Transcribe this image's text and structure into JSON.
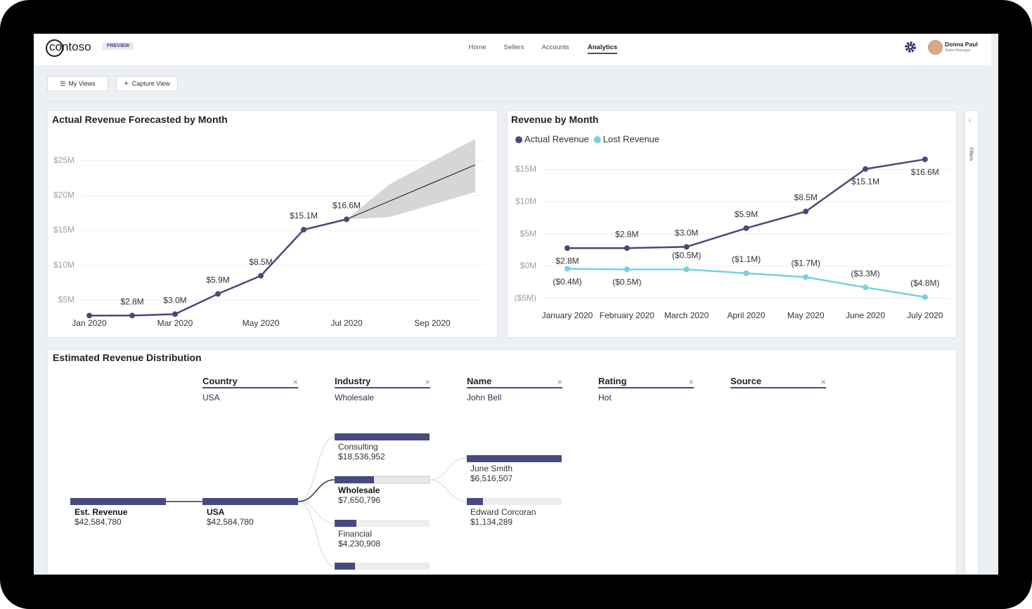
{
  "header": {
    "logo": "contoso",
    "badge": "PREVIEW",
    "nav": [
      "Home",
      "Sellers",
      "Accounts",
      "Analytics"
    ],
    "active_nav": 3,
    "user": {
      "name": "Donna Paul",
      "role": "Sales Manager"
    }
  },
  "toolbar": {
    "buttons": [
      "My Views",
      "Capture View"
    ]
  },
  "filters_pane": {
    "label": "Filters"
  },
  "chart_data": [
    {
      "type": "line",
      "title": "Actual Revenue Forecasted by Month",
      "categories": [
        "Jan 2020",
        null,
        "Mar 2020",
        null,
        "May 2020",
        null,
        "Jul 2020",
        null,
        "Sep 2020",
        null
      ],
      "series": [
        {
          "color": "#474a7d",
          "values": [
            2.8,
            2.8,
            3.0,
            5.9,
            8.5,
            15.1,
            16.6,
            null,
            null,
            null
          ],
          "value_labels": [
            null,
            "$2.8M",
            "$3.0M",
            "$5.9M",
            "$8.5M",
            "$15.1M",
            "$16.6M",
            null,
            null,
            null
          ]
        }
      ],
      "forecast": {
        "color": "#111111",
        "band_color": "#d6d6d6",
        "values": [
          null,
          null,
          null,
          null,
          null,
          null,
          16.6,
          19.2,
          21.8,
          24.4
        ],
        "upper": [
          null,
          null,
          null,
          null,
          null,
          null,
          16.6,
          21.6,
          24.9,
          28.1
        ],
        "lower": [
          null,
          null,
          null,
          null,
          null,
          null,
          16.6,
          16.9,
          18.7,
          20.5
        ]
      },
      "ylim": [
        0,
        29
      ],
      "yticks": [
        {
          "value": 5,
          "label": "$5M"
        },
        {
          "value": 10,
          "label": "$10M"
        },
        {
          "value": 15,
          "label": "$15M"
        },
        {
          "value": 20,
          "label": "$20M"
        },
        {
          "value": 25,
          "label": "$25M"
        }
      ],
      "grid": true
    },
    {
      "type": "line",
      "title": "Revenue by Month",
      "categories": [
        "January 2020",
        "February 2020",
        "March 2020",
        "April 2020",
        "May 2020",
        "June 2020",
        "July 2020"
      ],
      "series": [
        {
          "name": "Actual Revenue",
          "color": "#474a7d",
          "values": [
            2.8,
            2.8,
            3.0,
            5.9,
            8.5,
            15.1,
            16.6
          ],
          "value_labels": [
            "$2.8M",
            "$2.8M",
            "$3.0M",
            "$5.9M",
            "$8.5M",
            "$15.1M",
            "$16.6M"
          ]
        },
        {
          "name": "Lost Revenue",
          "color": "#76d0df",
          "values": [
            -0.4,
            -0.5,
            -0.5,
            -1.1,
            -1.7,
            -3.3,
            -4.8
          ],
          "value_labels": [
            "($0.4M)",
            "($0.5M)",
            "($0.5M)",
            "($1.1M)",
            "($1.7M)",
            "($3.3M)",
            "($4.8M)"
          ]
        }
      ],
      "legend": "top-left",
      "ylim": [
        -6.5,
        18
      ],
      "yticks": [
        {
          "value": -5,
          "label": "($5M)"
        },
        {
          "value": 0,
          "label": "$0M"
        },
        {
          "value": 5,
          "label": "$5M"
        },
        {
          "value": 10,
          "label": "$10M"
        },
        {
          "value": 15,
          "label": "$15M"
        }
      ],
      "grid": true
    }
  ],
  "decomposition": {
    "title": "Estimated Revenue Distribution",
    "columns": [
      {
        "header": "Country",
        "value": "USA"
      },
      {
        "header": "Industry",
        "value": "Wholesale"
      },
      {
        "header": "Name",
        "value": "John Bell"
      },
      {
        "header": "Rating",
        "value": "Hot"
      },
      {
        "header": "Source"
      }
    ],
    "root": {
      "label": "Est. Revenue",
      "value": "$42,584,780"
    },
    "country": {
      "label": "USA",
      "value": "$42,584,780"
    },
    "industries": [
      {
        "label": "Consulting",
        "value": "$18,536,952"
      },
      {
        "label": "Wholesale",
        "value": "$7,650,796"
      },
      {
        "label": "Financial",
        "value": "$4,230,908"
      }
    ],
    "names": [
      {
        "label": "June Smith",
        "value": "$6,516,507"
      },
      {
        "label": "Edward Corcoran",
        "value": "$1,134,289"
      }
    ]
  }
}
